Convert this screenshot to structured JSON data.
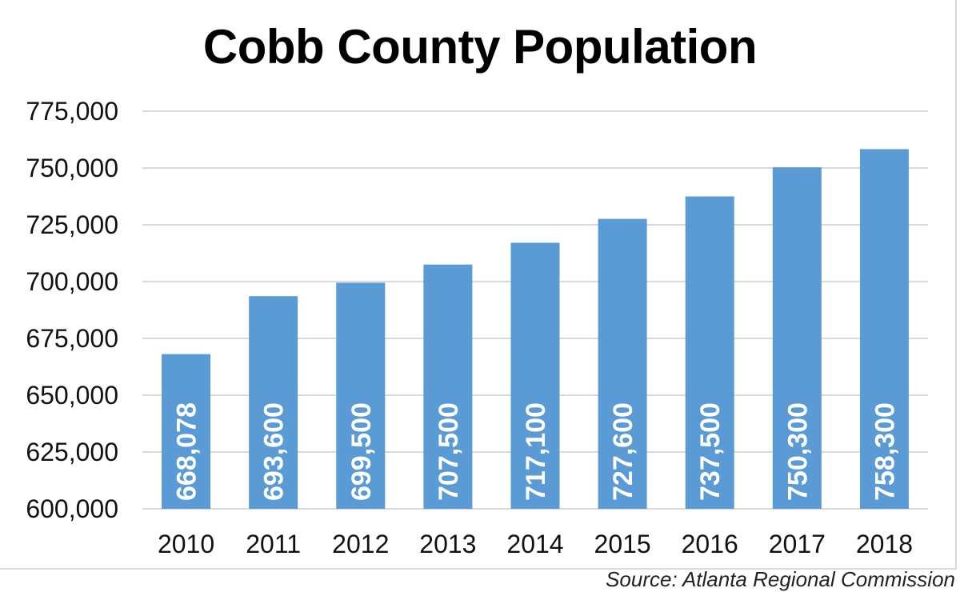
{
  "chart_data": {
    "type": "bar",
    "title": "Cobb County Population",
    "categories": [
      "2010",
      "2011",
      "2012",
      "2013",
      "2014",
      "2015",
      "2016",
      "2017",
      "2018"
    ],
    "values": [
      668078,
      693600,
      699500,
      707500,
      717100,
      727600,
      737500,
      750300,
      758300
    ],
    "value_labels": [
      "668,078",
      "693,600",
      "699,500",
      "707,500",
      "717,100",
      "727,600",
      "737,500",
      "750,300",
      "758,300"
    ],
    "ylim": [
      600000,
      775000
    ],
    "yticks": [
      600000,
      625000,
      650000,
      675000,
      700000,
      725000,
      750000,
      775000
    ],
    "ytick_labels": [
      "600,000",
      "625,000",
      "650,000",
      "675,000",
      "700,000",
      "725,000",
      "750,000",
      "775,000"
    ],
    "xlabel": "",
    "ylabel": "",
    "grid": true,
    "legend": false,
    "bar_color": "#5b9bd5",
    "grid_color": "#d9d9d9",
    "data_labels": "inside-rotated"
  },
  "source": "Source: Atlanta Regional Commission"
}
